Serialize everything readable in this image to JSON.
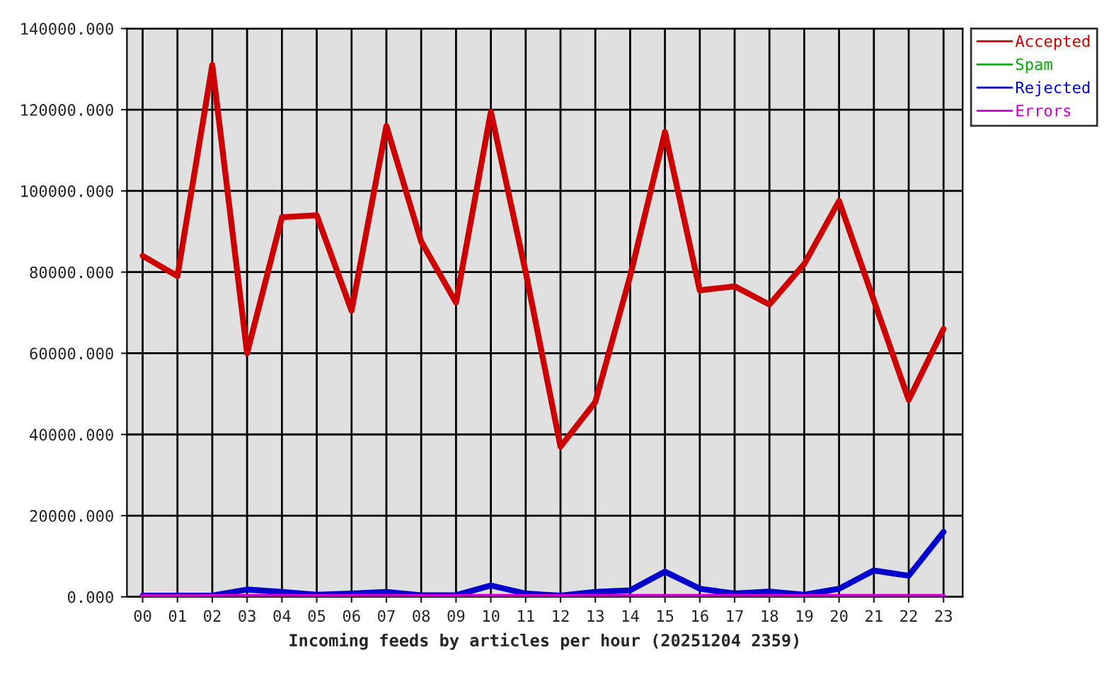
{
  "chart_data": {
    "type": "line",
    "xlabel": "Incoming feeds by articles per hour (20251204 2359)",
    "categories": [
      "00",
      "01",
      "02",
      "03",
      "04",
      "05",
      "06",
      "07",
      "08",
      "09",
      "10",
      "11",
      "12",
      "13",
      "14",
      "15",
      "16",
      "17",
      "18",
      "19",
      "20",
      "21",
      "22",
      "23"
    ],
    "series": [
      {
        "name": "Accepted",
        "color": "#cc0000",
        "values": [
          84000,
          79000,
          131000,
          60000,
          93500,
          94000,
          70500,
          116000,
          87500,
          72500,
          119500,
          80000,
          37000,
          48000,
          79000,
          114500,
          75500,
          76500,
          72000,
          82000,
          97500,
          73000,
          48500,
          66000
        ]
      },
      {
        "name": "Spam",
        "color": "#00aa00",
        "values": [
          null,
          null,
          null,
          null,
          null,
          null,
          null,
          null,
          null,
          null,
          null,
          null,
          null,
          null,
          null,
          null,
          null,
          null,
          null,
          null,
          null,
          null,
          null,
          null
        ]
      },
      {
        "name": "Rejected",
        "color": "#0000cc",
        "values": [
          300,
          300,
          300,
          1800,
          1200,
          500,
          800,
          1200,
          400,
          400,
          2800,
          800,
          300,
          1200,
          1600,
          6200,
          2000,
          800,
          1300,
          500,
          2000,
          6500,
          5200,
          16000
        ]
      },
      {
        "name": "Errors",
        "color": "#cc00cc",
        "values": [
          0,
          0,
          0,
          0,
          0,
          0,
          0,
          0,
          0,
          0,
          0,
          0,
          0,
          0,
          0,
          0,
          0,
          0,
          0,
          0,
          0,
          0,
          0,
          0
        ]
      }
    ],
    "ylim": [
      0,
      140000
    ],
    "yticks": [
      {
        "value": 0,
        "label": "0.000"
      },
      {
        "value": 20000,
        "label": "20000.000"
      },
      {
        "value": 40000,
        "label": "40000.000"
      },
      {
        "value": 60000,
        "label": "60000.000"
      },
      {
        "value": 80000,
        "label": "80000.000"
      },
      {
        "value": 100000,
        "label": "100000.000"
      },
      {
        "value": 120000,
        "label": "120000.000"
      },
      {
        "value": 140000,
        "label": "140000.000"
      }
    ],
    "grid": true,
    "legend": "top right",
    "marker": "none",
    "line_style": "solid"
  }
}
